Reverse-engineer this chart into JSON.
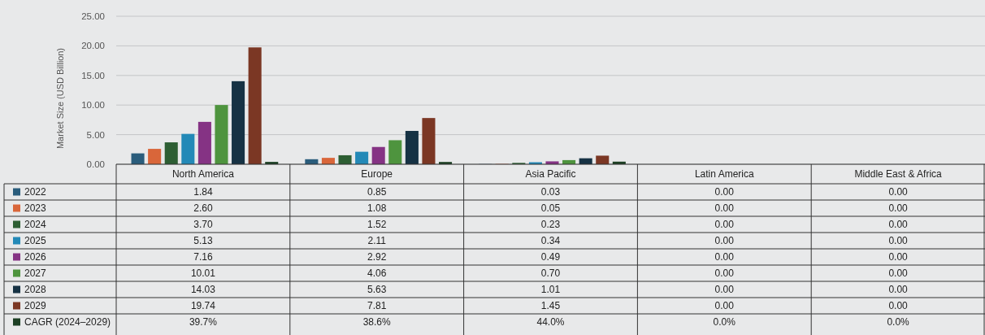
{
  "chart_data": {
    "type": "bar",
    "ylabel": "Market Size (USD  Billion)",
    "categories": [
      "North America",
      "Europe",
      "Asia Pacific",
      "Latin America",
      "Middle East & Africa"
    ],
    "ylim": [
      0,
      25
    ],
    "yticks": [
      {
        "value": 0,
        "label": "0.00"
      },
      {
        "value": 5,
        "label": "5.00"
      },
      {
        "value": 10,
        "label": "10.00"
      },
      {
        "value": 15,
        "label": "15.00"
      },
      {
        "value": 20,
        "label": "20.00"
      },
      {
        "value": 25,
        "label": "25.00"
      }
    ],
    "grid": "y",
    "legend": "bottom",
    "series": [
      {
        "name": "2022",
        "color": "#2a5d7c",
        "values": [
          1.84,
          0.85,
          0.03,
          0,
          0
        ],
        "value_labels": [
          "1.84",
          "0.85",
          "0.03",
          "0.00",
          "0.00"
        ]
      },
      {
        "name": "2023",
        "color": "#d9663a",
        "values": [
          2.6,
          1.08,
          0.05,
          0,
          0
        ],
        "value_labels": [
          "2.60",
          "1.08",
          "0.05",
          "0.00",
          "0.00"
        ]
      },
      {
        "name": "2024",
        "color": "#2d5e33",
        "values": [
          3.7,
          1.52,
          0.23,
          0,
          0
        ],
        "value_labels": [
          "3.70",
          "1.52",
          "0.23",
          "0.00",
          "0.00"
        ]
      },
      {
        "name": "2025",
        "color": "#2389b7",
        "values": [
          5.13,
          2.11,
          0.34,
          0,
          0
        ],
        "value_labels": [
          "5.13",
          "2.11",
          "0.34",
          "0.00",
          "0.00"
        ]
      },
      {
        "name": "2026",
        "color": "#853384",
        "values": [
          7.16,
          2.92,
          0.49,
          0,
          0
        ],
        "value_labels": [
          "7.16",
          "2.92",
          "0.49",
          "0.00",
          "0.00"
        ]
      },
      {
        "name": "2027",
        "color": "#4e943e",
        "values": [
          10.01,
          4.06,
          0.7,
          0,
          0
        ],
        "value_labels": [
          "10.01",
          "4.06",
          "0.70",
          "0.00",
          "0.00"
        ]
      },
      {
        "name": "2028",
        "color": "#163244",
        "values": [
          14.03,
          5.63,
          1.01,
          0,
          0
        ],
        "value_labels": [
          "14.03",
          "5.63",
          "1.01",
          "0.00",
          "0.00"
        ]
      },
      {
        "name": "2029",
        "color": "#7b3724",
        "values": [
          19.74,
          7.81,
          1.45,
          0,
          0
        ],
        "value_labels": [
          "19.74",
          "7.81",
          "1.45",
          "0.00",
          "0.00"
        ]
      },
      {
        "name": "CAGR (2024–2029)",
        "color": "#1d4024",
        "values": [
          0.397,
          0.386,
          0.44,
          0,
          0
        ],
        "value_labels": [
          "39.7%",
          "38.6%",
          "44.0%",
          "0.0%",
          "0.0%"
        ]
      }
    ]
  }
}
